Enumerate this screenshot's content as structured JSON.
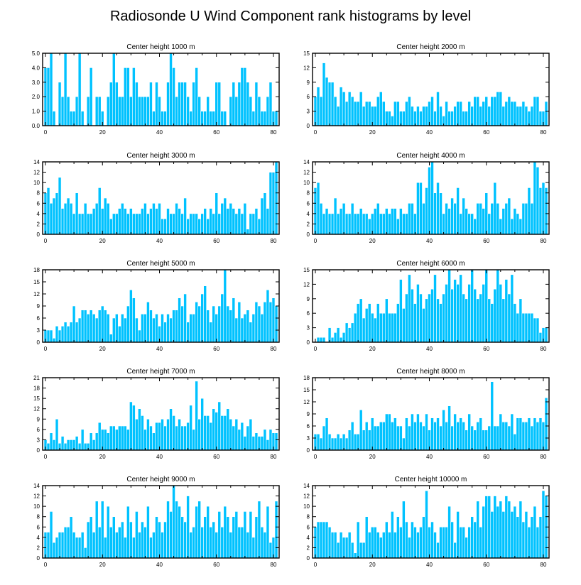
{
  "figure_title": "Radiosonde U Wind Component rank histograms by level",
  "colors": {
    "bar": "#00c2ff",
    "axis": "#000000",
    "background": "#ffffff"
  },
  "chart_data": [
    {
      "type": "bar",
      "title": "Center height 1000 m",
      "xlim": [
        -1,
        82
      ],
      "ylim": [
        0,
        5
      ],
      "xticks": [
        0,
        20,
        40,
        60,
        80
      ],
      "yticks": [
        0,
        1,
        2,
        3,
        4,
        5
      ],
      "ytick_labels": [
        "0.0",
        "1.0",
        "2.0",
        "3.0",
        "4.0",
        "5.0"
      ],
      "values": [
        4,
        4,
        5,
        1,
        0,
        3,
        2,
        5,
        2,
        1,
        1,
        2,
        5,
        1,
        0,
        2,
        4,
        0,
        2,
        2,
        1,
        0,
        2,
        3,
        5,
        3,
        2,
        2,
        4,
        4,
        2,
        4,
        3,
        2,
        2,
        2,
        2,
        3,
        1,
        3,
        2,
        1,
        1,
        3,
        5,
        4,
        2,
        3,
        3,
        3,
        2,
        1,
        3,
        4,
        2,
        1,
        1,
        2,
        1,
        1,
        3,
        3,
        1,
        1,
        0,
        2,
        3,
        2,
        3,
        4,
        4,
        3,
        2,
        1,
        3,
        2,
        1,
        1,
        2,
        3,
        1,
        1
      ]
    },
    {
      "type": "bar",
      "title": "Center height 2000 m",
      "xlim": [
        -1,
        82
      ],
      "ylim": [
        0,
        15
      ],
      "xticks": [
        0,
        20,
        40,
        60,
        80
      ],
      "yticks": [
        0,
        3,
        6,
        9,
        12,
        15
      ],
      "ytick_labels": [
        "0",
        "3",
        "6",
        "9",
        "12",
        "15"
      ],
      "values": [
        6,
        8,
        6,
        13,
        10,
        9,
        9,
        6,
        4,
        8,
        7,
        5,
        7,
        6,
        5,
        5,
        7,
        4,
        5,
        5,
        4,
        4,
        6,
        7,
        5,
        3,
        3,
        2,
        5,
        5,
        3,
        3,
        5,
        6,
        4,
        3,
        4,
        3,
        4,
        4,
        5,
        6,
        3,
        7,
        4,
        2,
        5,
        3,
        3,
        4,
        5,
        5,
        3,
        3,
        5,
        4,
        6,
        6,
        4,
        5,
        6,
        4,
        6,
        6,
        7,
        7,
        4,
        5,
        6,
        5,
        5,
        4,
        4,
        5,
        4,
        3,
        4,
        6,
        6,
        3,
        3,
        5
      ]
    },
    {
      "type": "bar",
      "title": "Center height 3000 m",
      "xlim": [
        -1,
        82
      ],
      "ylim": [
        0,
        14
      ],
      "xticks": [
        0,
        20,
        40,
        60,
        80
      ],
      "yticks": [
        0,
        2,
        4,
        6,
        8,
        10,
        12,
        14
      ],
      "ytick_labels": [
        "0",
        "2",
        "4",
        "6",
        "8",
        "10",
        "12",
        "14"
      ],
      "values": [
        8,
        9,
        6,
        7,
        8,
        11,
        5,
        6,
        7,
        6,
        4,
        8,
        4,
        4,
        6,
        4,
        4,
        5,
        6,
        9,
        5,
        7,
        6,
        3,
        4,
        4,
        5,
        6,
        5,
        4,
        5,
        4,
        4,
        4,
        5,
        6,
        4,
        5,
        6,
        5,
        6,
        3,
        3,
        5,
        4,
        4,
        6,
        5,
        4,
        7,
        3,
        4,
        4,
        4,
        3,
        4,
        5,
        3,
        5,
        4,
        8,
        4,
        6,
        7,
        5,
        6,
        5,
        4,
        5,
        4,
        6,
        1,
        4,
        4,
        5,
        3,
        7,
        8,
        5,
        12,
        12,
        14
      ]
    },
    {
      "type": "bar",
      "title": "Center height 4000 m",
      "xlim": [
        -1,
        82
      ],
      "ylim": [
        0,
        14
      ],
      "xticks": [
        0,
        20,
        40,
        60,
        80
      ],
      "yticks": [
        0,
        2,
        4,
        6,
        8,
        10,
        12,
        14
      ],
      "ytick_labels": [
        "0",
        "2",
        "4",
        "6",
        "8",
        "10",
        "12",
        "14"
      ],
      "values": [
        9,
        10,
        6,
        4,
        5,
        4,
        4,
        7,
        4,
        5,
        6,
        4,
        4,
        6,
        4,
        4,
        5,
        4,
        4,
        3,
        4,
        5,
        6,
        4,
        4,
        5,
        4,
        5,
        5,
        3,
        5,
        4,
        4,
        6,
        6,
        4,
        10,
        10,
        6,
        9,
        13,
        14,
        8,
        10,
        8,
        4,
        6,
        5,
        7,
        6,
        9,
        4,
        7,
        5,
        4,
        4,
        3,
        6,
        6,
        5,
        8,
        4,
        6,
        10,
        6,
        3,
        5,
        6,
        7,
        3,
        5,
        4,
        3,
        6,
        6,
        9,
        6,
        14,
        13,
        9,
        10,
        9
      ]
    },
    {
      "type": "bar",
      "title": "Center height 5000 m",
      "xlim": [
        -1,
        82
      ],
      "ylim": [
        0,
        18
      ],
      "xticks": [
        0,
        20,
        40,
        60,
        80
      ],
      "yticks": [
        0,
        3,
        6,
        9,
        12,
        15,
        18
      ],
      "ytick_labels": [
        "0",
        "3",
        "6",
        "9",
        "12",
        "15",
        "18"
      ],
      "values": [
        3,
        3,
        3,
        1,
        4,
        3,
        4,
        5,
        4,
        5,
        9,
        5,
        6,
        8,
        8,
        7,
        8,
        7,
        6,
        8,
        9,
        8,
        7,
        2,
        6,
        7,
        4,
        7,
        6,
        9,
        13,
        11,
        6,
        3,
        7,
        7,
        10,
        8,
        6,
        7,
        4,
        7,
        5,
        7,
        6,
        8,
        8,
        11,
        9,
        12,
        5,
        7,
        7,
        10,
        9,
        12,
        14,
        8,
        5,
        9,
        7,
        9,
        12,
        18,
        9,
        8,
        11,
        6,
        10,
        6,
        7,
        8,
        5,
        7,
        10,
        9,
        7,
        10,
        13,
        10,
        11,
        9
      ]
    },
    {
      "type": "bar",
      "title": "Center height 6000 m",
      "xlim": [
        -1,
        82
      ],
      "ylim": [
        0,
        15
      ],
      "xticks": [
        0,
        20,
        40,
        60,
        80
      ],
      "yticks": [
        0,
        3,
        6,
        9,
        12,
        15
      ],
      "ytick_labels": [
        "0",
        "3",
        "6",
        "9",
        "12",
        "15"
      ],
      "values": [
        0,
        1,
        1,
        1,
        0,
        3,
        1,
        2,
        3,
        1,
        2,
        4,
        3,
        4,
        6,
        8,
        9,
        5,
        7,
        8,
        6,
        5,
        8,
        6,
        6,
        9,
        6,
        6,
        6,
        8,
        13,
        7,
        10,
        14,
        11,
        8,
        12,
        10,
        7,
        9,
        10,
        11,
        14,
        9,
        8,
        10,
        12,
        15,
        11,
        13,
        12,
        14,
        10,
        9,
        12,
        15,
        11,
        9,
        10,
        12,
        15,
        9,
        8,
        11,
        15,
        12,
        9,
        13,
        10,
        14,
        8,
        6,
        9,
        6,
        6,
        6,
        6,
        5,
        5,
        2,
        3,
        3
      ]
    },
    {
      "type": "bar",
      "title": "Center height 7000 m",
      "xlim": [
        -1,
        82
      ],
      "ylim": [
        0,
        21
      ],
      "xticks": [
        0,
        20,
        40,
        60,
        80
      ],
      "yticks": [
        0,
        3,
        6,
        9,
        12,
        15,
        18,
        21
      ],
      "ytick_labels": [
        "0",
        "3",
        "6",
        "9",
        "12",
        "15",
        "18",
        "21"
      ],
      "values": [
        3,
        2,
        5,
        3,
        9,
        2,
        4,
        2,
        3,
        3,
        3,
        4,
        2,
        6,
        2,
        2,
        5,
        3,
        5,
        8,
        6,
        6,
        5,
        7,
        7,
        6,
        7,
        7,
        7,
        6,
        14,
        13,
        9,
        12,
        10,
        6,
        9,
        7,
        5,
        8,
        8,
        9,
        7,
        9,
        12,
        10,
        7,
        9,
        7,
        7,
        8,
        13,
        6,
        20,
        9,
        15,
        10,
        10,
        8,
        12,
        11,
        14,
        10,
        10,
        12,
        9,
        7,
        9,
        6,
        8,
        4,
        7,
        9,
        4,
        5,
        4,
        4,
        6,
        3,
        6,
        5,
        5
      ]
    },
    {
      "type": "bar",
      "title": "Center height 8000 m",
      "xlim": [
        -1,
        82
      ],
      "ylim": [
        0,
        18
      ],
      "xticks": [
        0,
        20,
        40,
        60,
        80
      ],
      "yticks": [
        0,
        3,
        6,
        9,
        12,
        15,
        18
      ],
      "ytick_labels": [
        "0",
        "3",
        "6",
        "9",
        "12",
        "15",
        "18"
      ],
      "values": [
        4,
        4,
        3,
        6,
        8,
        4,
        3,
        3,
        4,
        3,
        4,
        3,
        5,
        7,
        4,
        4,
        10,
        5,
        7,
        5,
        8,
        6,
        6,
        7,
        7,
        9,
        9,
        7,
        8,
        6,
        6,
        3,
        8,
        6,
        9,
        7,
        9,
        7,
        6,
        9,
        5,
        8,
        7,
        8,
        6,
        10,
        7,
        11,
        6,
        9,
        7,
        8,
        7,
        5,
        9,
        6,
        5,
        7,
        8,
        5,
        5,
        6,
        17,
        6,
        6,
        9,
        7,
        7,
        6,
        9,
        4,
        8,
        8,
        7,
        7,
        8,
        6,
        8,
        7,
        8,
        7,
        13
      ]
    },
    {
      "type": "bar",
      "title": "Center height 9000 m",
      "xlim": [
        -1,
        82
      ],
      "ylim": [
        0,
        14
      ],
      "xticks": [
        0,
        20,
        40,
        60,
        80
      ],
      "yticks": [
        0,
        2,
        4,
        6,
        8,
        10,
        12,
        14
      ],
      "ytick_labels": [
        "0",
        "2",
        "4",
        "6",
        "8",
        "10",
        "12",
        "14"
      ],
      "values": [
        5,
        5,
        9,
        3,
        4,
        5,
        5,
        6,
        6,
        8,
        5,
        4,
        4,
        5,
        2,
        7,
        8,
        5,
        11,
        6,
        11,
        4,
        10,
        6,
        8,
        5,
        6,
        7,
        4,
        10,
        7,
        4,
        9,
        5,
        7,
        6,
        10,
        4,
        5,
        8,
        7,
        5,
        7,
        11,
        9,
        14,
        11,
        10,
        8,
        7,
        12,
        5,
        6,
        10,
        11,
        6,
        8,
        10,
        6,
        7,
        5,
        9,
        6,
        10,
        8,
        5,
        8,
        9,
        6,
        6,
        9,
        5,
        9,
        4,
        8,
        11,
        6,
        5,
        10,
        3,
        4,
        11
      ]
    },
    {
      "type": "bar",
      "title": "Center height 10000 m",
      "xlim": [
        -1,
        82
      ],
      "ylim": [
        0,
        14
      ],
      "xticks": [
        0,
        20,
        40,
        60,
        80
      ],
      "yticks": [
        0,
        2,
        4,
        6,
        8,
        10,
        12,
        14
      ],
      "ytick_labels": [
        "0",
        "2",
        "4",
        "6",
        "8",
        "10",
        "12",
        "14"
      ],
      "values": [
        6,
        7,
        7,
        7,
        7,
        6,
        5,
        5,
        3,
        5,
        4,
        4,
        5,
        3,
        1,
        7,
        3,
        3,
        8,
        5,
        6,
        6,
        5,
        4,
        5,
        7,
        5,
        9,
        5,
        8,
        6,
        11,
        7,
        4,
        7,
        6,
        5,
        6,
        8,
        13,
        6,
        7,
        5,
        3,
        6,
        6,
        6,
        10,
        7,
        3,
        9,
        6,
        6,
        4,
        6,
        8,
        7,
        11,
        6,
        10,
        12,
        12,
        9,
        12,
        10,
        11,
        9,
        12,
        11,
        9,
        10,
        8,
        11,
        7,
        9,
        6,
        8,
        10,
        6,
        8,
        13,
        12
      ]
    }
  ]
}
